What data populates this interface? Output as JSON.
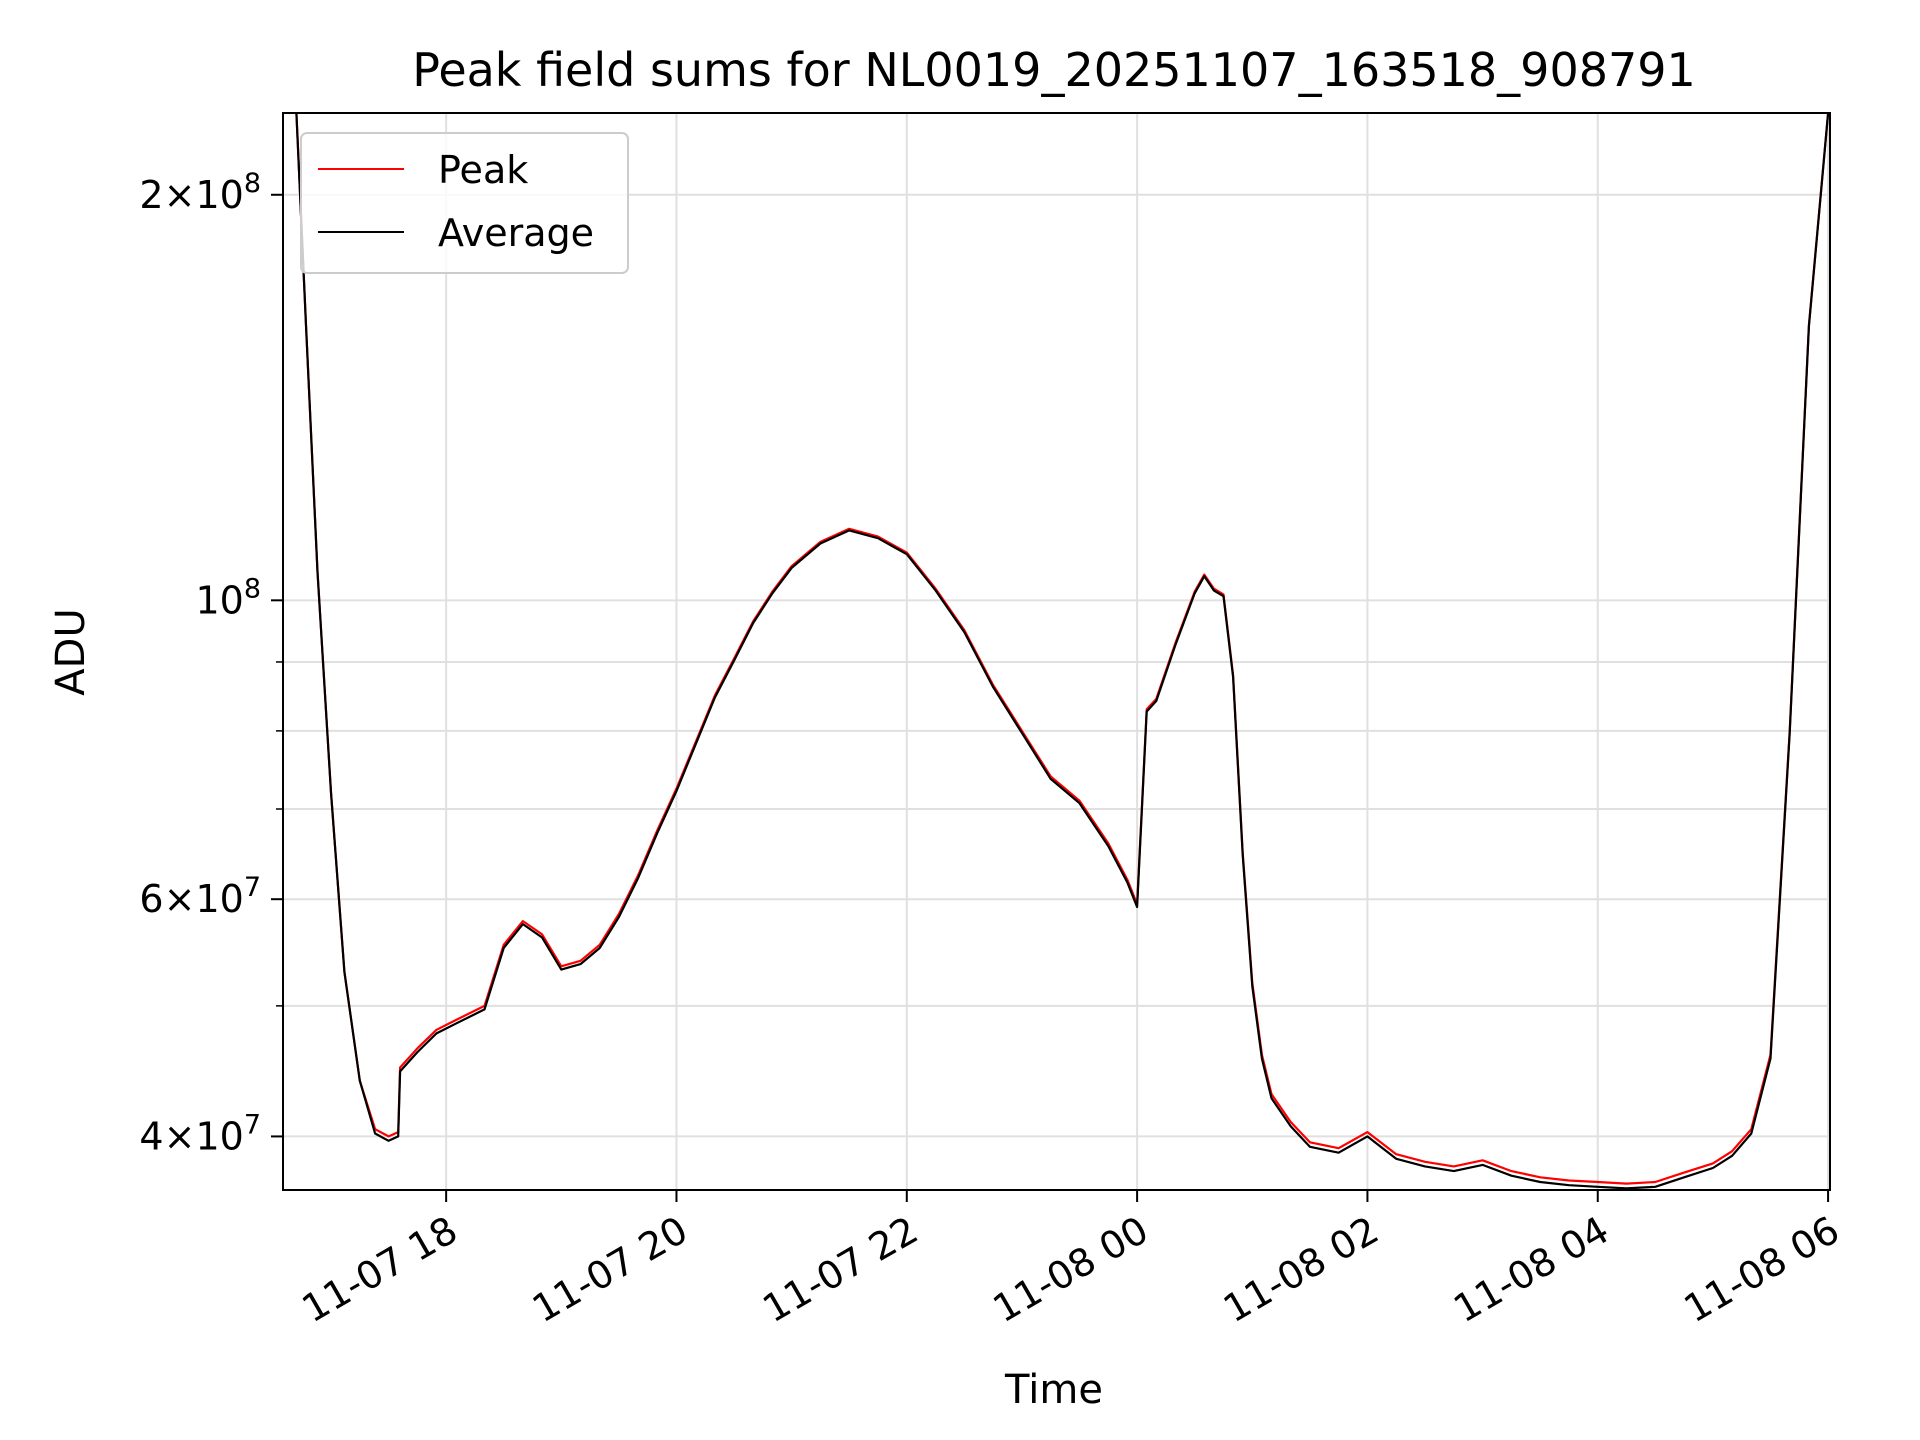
{
  "chart_data": {
    "type": "line",
    "title": "Peak field sums for NL0019_20251107_163518_908791",
    "xlabel": "Time",
    "ylabel": "ADU",
    "yscale": "log",
    "ylim": [
      36500000,
      230000000
    ],
    "xlim": [
      "11-07 16:35",
      "11-08 06:01"
    ],
    "grid": true,
    "legend_position": "upper left",
    "x_ticks": [
      "11-07 18",
      "11-07 20",
      "11-07 22",
      "11-08 00",
      "11-08 02",
      "11-08 04",
      "11-08 06"
    ],
    "y_ticks": [
      {
        "base": "4",
        "exp": "7",
        "value": 40000000
      },
      {
        "base": "6",
        "exp": "7",
        "value": 60000000
      },
      {
        "base": "",
        "exp": "8",
        "value": 100000000
      },
      {
        "base": "2",
        "exp": "8",
        "value": 200000000
      }
    ],
    "y_minor_ticks": [
      50000000,
      70000000,
      80000000,
      90000000
    ],
    "colors": {
      "peak": "#ff0000",
      "average": "#000000",
      "grid": "#e0e0e0"
    },
    "x": [
      "11-07 16:42",
      "11-07 16:47",
      "11-07 16:53",
      "11-07 17:00",
      "11-07 17:07",
      "11-07 17:15",
      "11-07 17:23",
      "11-07 17:30",
      "11-07 17:35",
      "11-07 17:36",
      "11-07 17:45",
      "11-07 17:55",
      "11-07 18:05",
      "11-07 18:20",
      "11-07 18:30",
      "11-07 18:40",
      "11-07 18:50",
      "11-07 19:00",
      "11-07 19:10",
      "11-07 19:20",
      "11-07 19:30",
      "11-07 19:40",
      "11-07 19:50",
      "11-07 20:00",
      "11-07 20:10",
      "11-07 20:20",
      "11-07 20:30",
      "11-07 20:40",
      "11-07 20:50",
      "11-07 21:00",
      "11-07 21:15",
      "11-07 21:30",
      "11-07 21:45",
      "11-07 22:00",
      "11-07 22:15",
      "11-07 22:30",
      "11-07 22:45",
      "11-07 23:00",
      "11-07 23:15",
      "11-07 23:30",
      "11-07 23:45",
      "11-07 23:55",
      "11-08 00:00",
      "11-08 00:05",
      "11-08 00:10",
      "11-08 00:20",
      "11-08 00:30",
      "11-08 00:35",
      "11-08 00:40",
      "11-08 00:45",
      "11-08 00:50",
      "11-08 00:55",
      "11-08 01:00",
      "11-08 01:05",
      "11-08 01:10",
      "11-08 01:20",
      "11-08 01:30",
      "11-08 01:45",
      "11-08 02:00",
      "11-08 02:15",
      "11-08 02:30",
      "11-08 02:45",
      "11-08 03:00",
      "11-08 03:15",
      "11-08 03:30",
      "11-08 03:45",
      "11-08 04:00",
      "11-08 04:15",
      "11-08 04:30",
      "11-08 04:45",
      "11-08 05:00",
      "11-08 05:10",
      "11-08 05:20",
      "11-08 05:30",
      "11-08 05:40",
      "11-08 05:50",
      "11-08 06:00"
    ],
    "series": [
      {
        "name": "Peak",
        "values": [
          230000000,
          160000000,
          105000000,
          72000000,
          53000000,
          44000000,
          40500000,
          40000000,
          40300000,
          45000000,
          46500000,
          48000000,
          48800000,
          50000000,
          55500000,
          57800000,
          56500000,
          53500000,
          54000000,
          55500000,
          58500000,
          62500000,
          67500000,
          72500000,
          78500000,
          85000000,
          90500000,
          96500000,
          101500000,
          106000000,
          110500000,
          113000000,
          111500000,
          108500000,
          102000000,
          95000000,
          86500000,
          80000000,
          74000000,
          71000000,
          66000000,
          62000000,
          59500000,
          83000000,
          84500000,
          93000000,
          101500000,
          104500000,
          102000000,
          101000000,
          88000000,
          65000000,
          52000000,
          46000000,
          43000000,
          41000000,
          39600000,
          39200000,
          40300000,
          38800000,
          38300000,
          38000000,
          38400000,
          37700000,
          37300000,
          37100000,
          37000000,
          36900000,
          37000000,
          37600000,
          38200000,
          39000000,
          40500000,
          46000000,
          80000000,
          160000000,
          230000000
        ]
      },
      {
        "name": "Average",
        "values": [
          230000000,
          160000000,
          105000000,
          72000000,
          53000000,
          44000000,
          40200000,
          39700000,
          40000000,
          44700000,
          46200000,
          47700000,
          48500000,
          49700000,
          55200000,
          57500000,
          56200000,
          53200000,
          53700000,
          55200000,
          58200000,
          62200000,
          67200000,
          72200000,
          78200000,
          84700000,
          90200000,
          96200000,
          101200000,
          105700000,
          110200000,
          112700000,
          111200000,
          108200000,
          101700000,
          94700000,
          86200000,
          79700000,
          73700000,
          70700000,
          65700000,
          61700000,
          59200000,
          82700000,
          84200000,
          92700000,
          101200000,
          104200000,
          101700000,
          100700000,
          87700000,
          64700000,
          51700000,
          45700000,
          42700000,
          40700000,
          39300000,
          38900000,
          40000000,
          38500000,
          38000000,
          37700000,
          38100000,
          37400000,
          37000000,
          36800000,
          36700000,
          36600000,
          36700000,
          37300000,
          37900000,
          38700000,
          40200000,
          45700000,
          79700000,
          159700000,
          230000000
        ]
      }
    ],
    "legend": [
      "Peak",
      "Average"
    ]
  }
}
